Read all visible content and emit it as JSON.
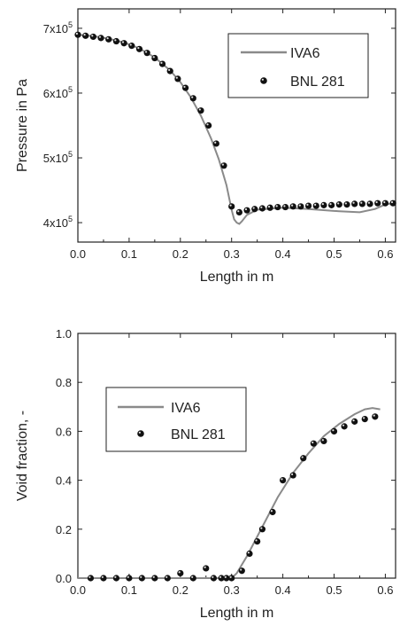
{
  "chart_data": [
    {
      "type": "line",
      "xlabel": "Length in m",
      "ylabel": "Pressure in Pa",
      "xlim": [
        0.0,
        0.62
      ],
      "ylim": [
        370000,
        730000
      ],
      "xticks": [
        0.0,
        0.1,
        0.2,
        0.3,
        0.4,
        0.5,
        0.6
      ],
      "xtick_labels": [
        "0.0",
        "0.1",
        "0.2",
        "0.3",
        "0.4",
        "0.5",
        "0.6"
      ],
      "yticks": [
        400000,
        500000,
        600000,
        700000
      ],
      "ytick_labels": [
        {
          "base": "4x10",
          "exp": "5"
        },
        {
          "base": "5x10",
          "exp": "5"
        },
        {
          "base": "6x10",
          "exp": "5"
        },
        {
          "base": "7x10",
          "exp": "5"
        }
      ],
      "legend_position": "top-right",
      "series": [
        {
          "name": "IVA6",
          "style": "line",
          "color": "#8a8a8a",
          "x": [
            0.0,
            0.03,
            0.06,
            0.09,
            0.12,
            0.15,
            0.18,
            0.2,
            0.22,
            0.24,
            0.26,
            0.275,
            0.29,
            0.3,
            0.305,
            0.31,
            0.315,
            0.32,
            0.33,
            0.35,
            0.4,
            0.45,
            0.5,
            0.55,
            0.58,
            0.6,
            0.615
          ],
          "y": [
            690000,
            688000,
            684000,
            678000,
            669000,
            655000,
            635000,
            617000,
            594000,
            565000,
            530000,
            498000,
            458000,
            420000,
            405000,
            400000,
            398000,
            402000,
            412000,
            420000,
            423000,
            421000,
            418000,
            416000,
            421000,
            428000,
            430000
          ]
        },
        {
          "name": "BNL 281",
          "style": "markers",
          "color": "#111111",
          "x": [
            0.0,
            0.015,
            0.03,
            0.045,
            0.06,
            0.075,
            0.09,
            0.105,
            0.12,
            0.135,
            0.15,
            0.165,
            0.18,
            0.195,
            0.21,
            0.225,
            0.24,
            0.255,
            0.27,
            0.285,
            0.3,
            0.315,
            0.33,
            0.345,
            0.36,
            0.375,
            0.39,
            0.405,
            0.42,
            0.435,
            0.45,
            0.465,
            0.48,
            0.495,
            0.51,
            0.525,
            0.54,
            0.555,
            0.57,
            0.585,
            0.6,
            0.615
          ],
          "y": [
            690000,
            688500,
            687000,
            685000,
            683000,
            680000,
            677000,
            673000,
            668000,
            662000,
            654000,
            645000,
            634000,
            622000,
            608000,
            592000,
            573000,
            550000,
            522000,
            488000,
            425000,
            416000,
            419000,
            421000,
            422000,
            423000,
            424000,
            424000,
            425000,
            425000,
            426000,
            426000,
            427000,
            427000,
            428000,
            428000,
            429000,
            429000,
            429000,
            430000,
            430000,
            430000
          ]
        }
      ]
    },
    {
      "type": "line",
      "xlabel": "Length in m",
      "ylabel": "Void fraction, -",
      "xlim": [
        0.0,
        0.62
      ],
      "ylim": [
        0.0,
        1.0
      ],
      "xticks": [
        0.0,
        0.1,
        0.2,
        0.3,
        0.4,
        0.5,
        0.6
      ],
      "xtick_labels": [
        "0.0",
        "0.1",
        "0.2",
        "0.3",
        "0.4",
        "0.5",
        "0.6"
      ],
      "yticks": [
        0.0,
        0.2,
        0.4,
        0.6,
        0.8,
        1.0
      ],
      "ytick_labels": [
        "0.0",
        "0.2",
        "0.4",
        "0.6",
        "0.8",
        "1.0"
      ],
      "legend_position": "center-left",
      "series": [
        {
          "name": "IVA6",
          "style": "line",
          "color": "#8a8a8a",
          "x": [
            0.0,
            0.1,
            0.2,
            0.29,
            0.3,
            0.31,
            0.33,
            0.36,
            0.39,
            0.42,
            0.45,
            0.48,
            0.51,
            0.54,
            0.56,
            0.575,
            0.59
          ],
          "y": [
            0.0,
            0.0,
            0.0,
            0.0,
            0.0,
            0.02,
            0.09,
            0.21,
            0.33,
            0.43,
            0.51,
            0.58,
            0.63,
            0.67,
            0.69,
            0.695,
            0.69
          ]
        },
        {
          "name": "BNL 281",
          "style": "markers",
          "color": "#111111",
          "x": [
            0.025,
            0.05,
            0.075,
            0.1,
            0.125,
            0.15,
            0.175,
            0.2,
            0.225,
            0.25,
            0.265,
            0.28,
            0.29,
            0.3,
            0.32,
            0.335,
            0.35,
            0.36,
            0.38,
            0.4,
            0.42,
            0.44,
            0.46,
            0.48,
            0.5,
            0.52,
            0.54,
            0.56,
            0.58
          ],
          "y": [
            0.0,
            0.0,
            0.0,
            0.0,
            0.0,
            0.0,
            0.0,
            0.02,
            0.0,
            0.04,
            0.0,
            0.0,
            0.0,
            0.0,
            0.03,
            0.1,
            0.15,
            0.2,
            0.27,
            0.4,
            0.42,
            0.49,
            0.55,
            0.56,
            0.6,
            0.62,
            0.64,
            0.65,
            0.66
          ]
        }
      ]
    }
  ]
}
